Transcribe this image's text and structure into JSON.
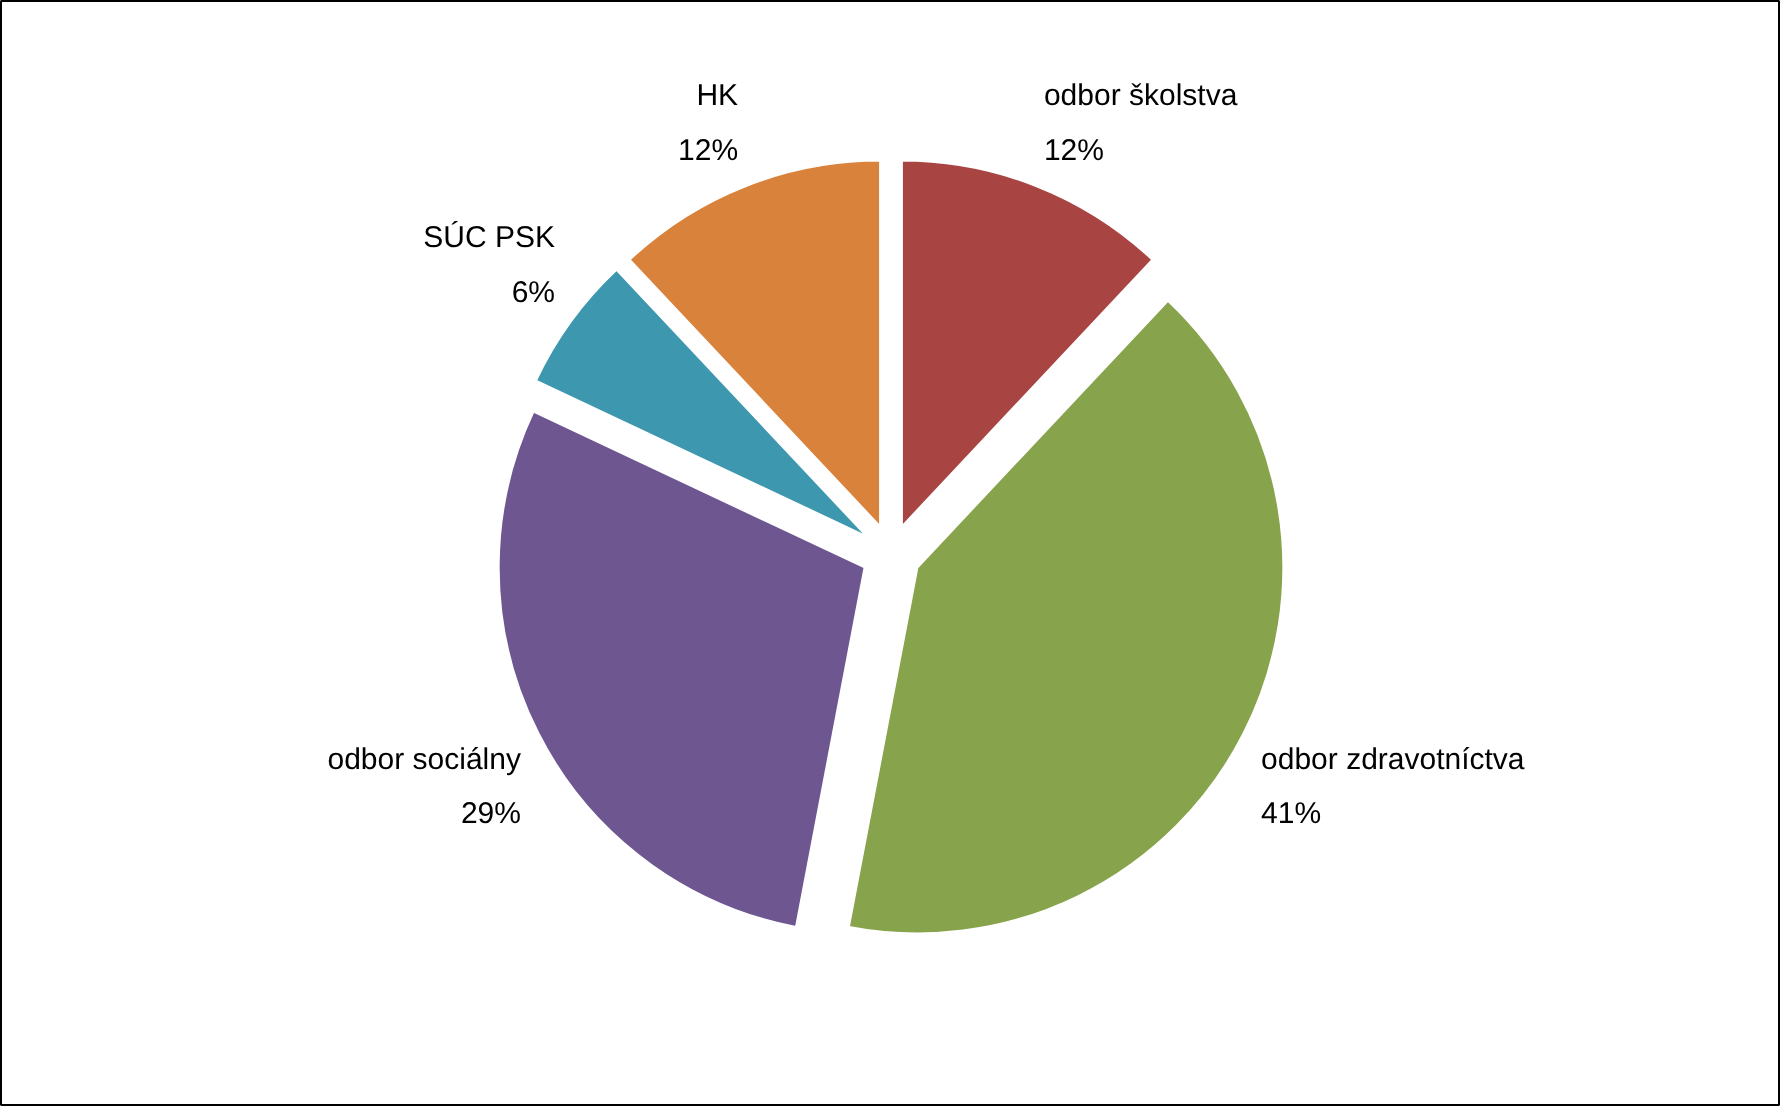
{
  "chart_data": {
    "type": "pie",
    "categories": [
      "odbor školstva",
      "odbor zdravotníctva",
      "odbor sociálny",
      "SÚC PSK",
      "HK"
    ],
    "values": [
      12,
      41,
      29,
      6,
      12
    ],
    "colors": [
      "#a84442",
      "#87a34c",
      "#6e5790",
      "#3d97ae",
      "#d8823c"
    ],
    "value_labels": [
      "12%",
      "41%",
      "29%",
      "6%",
      "12%"
    ]
  }
}
